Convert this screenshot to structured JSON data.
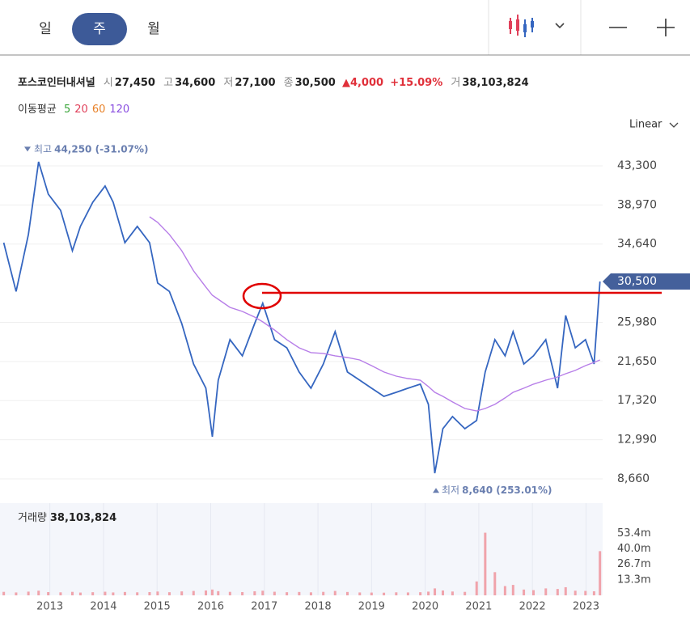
{
  "tabs": [
    "일",
    "주",
    "월"
  ],
  "active_tab": 1,
  "quote": {
    "name": "포스코인터내셔널",
    "items": [
      {
        "label": "시",
        "value": "27,450"
      },
      {
        "label": "고",
        "value": "34,600"
      },
      {
        "label": "저",
        "value": "27,100"
      },
      {
        "label": "종",
        "value": "30,500"
      }
    ],
    "change": "▲4,000",
    "change_pct": "+15.09%",
    "volume_label": "거",
    "volume_value": "38,103,824"
  },
  "moving_averages": {
    "label": "이동평균",
    "periods": [
      5,
      20,
      60,
      120
    ],
    "colors": [
      "#3aa53a",
      "#e0405a",
      "#e8822a",
      "#8a4fe0"
    ]
  },
  "scale_mode": "Linear",
  "chart_data": {
    "type": "line",
    "x": [
      2012.14,
      2012.37,
      2012.6,
      2012.79,
      2012.97,
      2013.2,
      2013.42,
      2013.57,
      2013.8,
      2014.03,
      2014.18,
      2014.4,
      2014.63,
      2014.86,
      2015.01,
      2015.23,
      2015.46,
      2015.68,
      2015.91,
      2016.03,
      2016.14,
      2016.36,
      2016.59,
      2016.82,
      2016.97,
      2017.19,
      2017.42,
      2017.65,
      2017.87,
      2018.1,
      2018.32,
      2018.55,
      2018.78,
      2019.0,
      2019.23,
      2019.46,
      2019.68,
      2019.91,
      2020.06,
      2020.18,
      2020.33,
      2020.51,
      2020.74,
      2020.96,
      2021.12,
      2021.3,
      2021.49,
      2021.64,
      2021.84,
      2022.02,
      2022.25,
      2022.47,
      2022.62,
      2022.8,
      2022.99,
      2023.15,
      2023.26
    ],
    "series": [
      {
        "color": "#3566c0",
        "values": [
          34800,
          29400,
          35700,
          43750,
          40170,
          38380,
          33900,
          36600,
          39270,
          41060,
          39270,
          34800,
          36600,
          34800,
          30330,
          29400,
          25850,
          21370,
          18690,
          13320,
          19580,
          24060,
          22270,
          25850,
          28090,
          24060,
          23160,
          20480,
          18690,
          21370,
          24950,
          20480,
          19580,
          18690,
          17790,
          18240,
          18690,
          19140,
          16900,
          9290,
          14210,
          15550,
          14210,
          15110,
          20480,
          24060,
          22270,
          24950,
          21370,
          22270,
          24060,
          18690,
          26740,
          23160,
          24060,
          21370,
          30500
        ]
      },
      {
        "color": "#b77ee8",
        "values": [
          null,
          null,
          null,
          null,
          null,
          null,
          null,
          null,
          null,
          null,
          null,
          null,
          null,
          37660,
          37040,
          35700,
          33900,
          31670,
          29880,
          28980,
          28530,
          27640,
          27190,
          26560,
          26030,
          25130,
          24060,
          23160,
          22630,
          22540,
          22270,
          22090,
          21820,
          21190,
          20480,
          20030,
          19760,
          19580,
          18870,
          18240,
          17790,
          17170,
          16450,
          16180,
          16450,
          16900,
          17620,
          18240,
          18690,
          19140,
          19580,
          19940,
          20300,
          20660,
          21190,
          21550,
          21820
        ]
      }
    ],
    "xlim": [
      2012.07,
      2023.31
    ],
    "xticks": [
      2013,
      2014,
      2015,
      2016,
      2017,
      2018,
      2019,
      2020,
      2021,
      2022,
      2023
    ],
    "ylim": [
      7944,
      45985
    ],
    "yticks": [
      {
        "value": 43300,
        "label": "43,300"
      },
      {
        "value": 38970,
        "label": "38,970"
      },
      {
        "value": 34640,
        "label": "34,640"
      },
      {
        "value": 25980,
        "label": "25,980"
      },
      {
        "value": 21650,
        "label": "21,650"
      },
      {
        "value": 17320,
        "label": "17,320"
      },
      {
        "value": 12990,
        "label": "12,990"
      },
      {
        "value": 8660,
        "label": "8,660"
      }
    ],
    "grid": true,
    "last_price_label": "30,500",
    "high": {
      "label": "최고",
      "value": 44250,
      "text": "44,250 (-31.07%)"
    },
    "low": {
      "label": "최저",
      "value": 8640,
      "text": "8,640 (253.01%)"
    },
    "volume": {
      "label": "거래량",
      "value_label": "38,103,824",
      "color": "#f0a3ab",
      "values": [
        3000000,
        2500000,
        3200000,
        4000000,
        2800000,
        2600000,
        3000000,
        2400000,
        2700000,
        3100000,
        2500000,
        2900000,
        2600000,
        2800000,
        3300000,
        2700000,
        3400000,
        3800000,
        4200000,
        5000000,
        3600000,
        3000000,
        2800000,
        3500000,
        4000000,
        3100000,
        2700000,
        2900000,
        2600000,
        3000000,
        3800000,
        2900000,
        2500000,
        2400000,
        2300000,
        2600000,
        2500000,
        2700000,
        3200000,
        6000000,
        4200000,
        3300000,
        3000000,
        12000000,
        54000000,
        20000000,
        8000000,
        9000000,
        5000000,
        4500000,
        6000000,
        5500000,
        7000000,
        4000000,
        3800000,
        3500000,
        38103824
      ],
      "ylim": [
        0,
        79500000
      ],
      "yticks": [
        {
          "value": 53400000,
          "label": "53.4m"
        },
        {
          "value": 40000000,
          "label": "40.0m"
        },
        {
          "value": 26700000,
          "label": "26.7m"
        },
        {
          "value": 13300000,
          "label": "13.3m"
        }
      ]
    }
  }
}
